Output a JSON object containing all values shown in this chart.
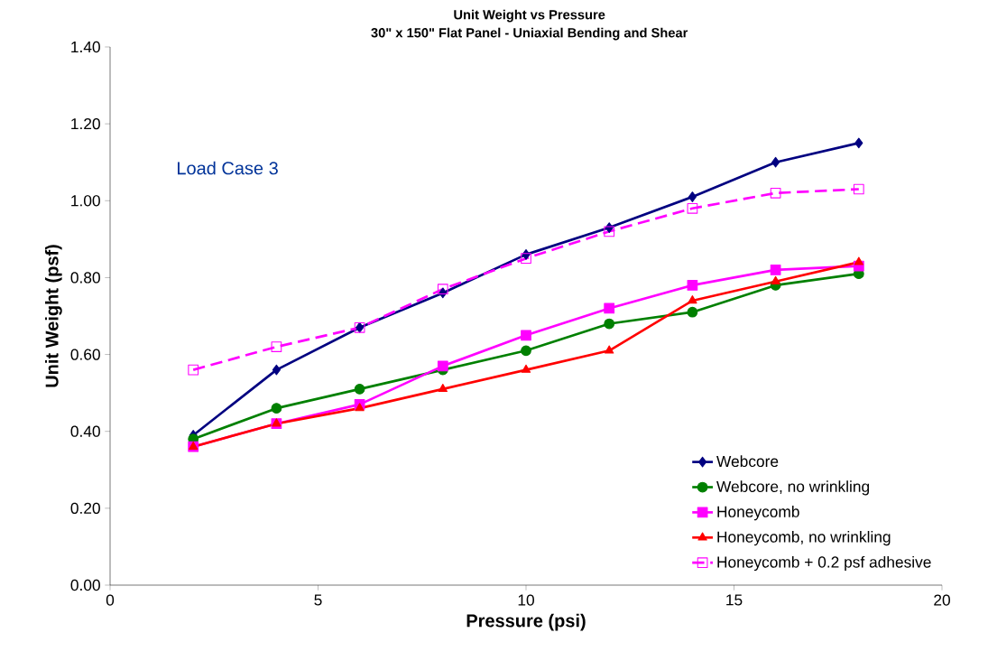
{
  "chart_data": {
    "type": "line",
    "title": "Unit Weight vs Pressure",
    "subtitle": "30\" x 150\" Flat Panel - Uniaxial Bending and Shear",
    "xlabel": "Pressure (psi)",
    "ylabel": "Unit Weight (psf)",
    "x": [
      2,
      4,
      6,
      8,
      10,
      12,
      14,
      16,
      18
    ],
    "series": [
      {
        "name": "Webcore",
        "color": "#000080",
        "marker": "diamond",
        "line_style": "solid",
        "values": [
          0.39,
          0.56,
          0.67,
          0.76,
          0.86,
          0.93,
          1.01,
          1.1,
          1.15
        ]
      },
      {
        "name": "Webcore, no wrinkling",
        "color": "#008000",
        "marker": "circle",
        "line_style": "solid",
        "values": [
          0.38,
          0.46,
          0.51,
          0.56,
          0.61,
          0.68,
          0.71,
          0.78,
          0.81
        ]
      },
      {
        "name": "Honeycomb",
        "color": "#ff00ff",
        "marker": "square",
        "line_style": "solid",
        "values": [
          0.36,
          0.42,
          0.47,
          0.57,
          0.65,
          0.72,
          0.78,
          0.82,
          0.83
        ]
      },
      {
        "name": "Honeycomb, no wrinkling",
        "color": "#ff0000",
        "marker": "triangle",
        "line_style": "solid",
        "values": [
          0.36,
          0.42,
          0.46,
          0.51,
          0.56,
          0.61,
          0.74,
          0.79,
          0.84
        ]
      },
      {
        "name": "Honeycomb + 0.2 psf adhesive",
        "color": "#ff00ff",
        "marker": "square",
        "line_style": "dashed",
        "values": [
          0.56,
          0.62,
          0.67,
          0.77,
          0.85,
          0.92,
          0.98,
          1.02,
          1.03
        ]
      }
    ],
    "xlim": [
      0,
      20
    ],
    "xticks": [
      0,
      5,
      10,
      15,
      20
    ],
    "ylim": [
      0,
      1.4
    ],
    "yticks": [
      {
        "value": 0,
        "label": "0.00"
      },
      {
        "value": 0.2,
        "label": "0.20"
      },
      {
        "value": 0.4,
        "label": "0.40"
      },
      {
        "value": 0.6,
        "label": "0.60"
      },
      {
        "value": 0.8,
        "label": "0.80"
      },
      {
        "value": 1.0,
        "label": "1.00"
      },
      {
        "value": 1.2,
        "label": "1.20"
      },
      {
        "value": 1.4,
        "label": "1.40"
      }
    ],
    "grid": false,
    "legend": "bottom right",
    "annotations": [
      "Load Case 3"
    ]
  }
}
